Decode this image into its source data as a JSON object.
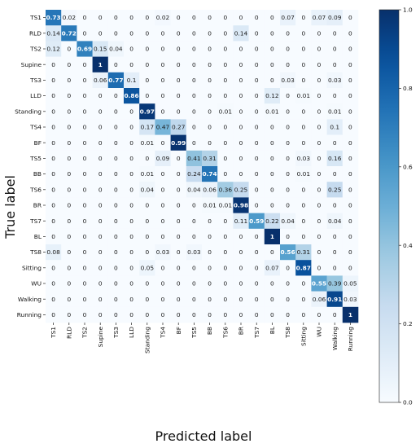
{
  "chart_data": {
    "type": "heatmap",
    "title": "",
    "xlabel": "Predicted label",
    "ylabel": "True label",
    "categories": [
      "TS1",
      "RLD",
      "TS2",
      "Supine",
      "TS3",
      "LLD",
      "Standing",
      "TS4",
      "BF",
      "TS5",
      "BB",
      "TS6",
      "BR",
      "TS7",
      "BL",
      "TS8",
      "Sitting",
      "WU",
      "Walking",
      "Running"
    ],
    "matrix": [
      [
        "0.73",
        "0.02",
        "0",
        "0",
        "0",
        "0",
        "0",
        "0.02",
        "0",
        "0",
        "0",
        "0",
        "0",
        "0",
        "0",
        "0.07",
        "0",
        "0.07",
        "0.09",
        "0"
      ],
      [
        "0.14",
        "0.72",
        "0",
        "0",
        "0",
        "0",
        "0",
        "0",
        "0",
        "0",
        "0",
        "0",
        "0.14",
        "0",
        "0",
        "0",
        "0",
        "0",
        "0",
        "0"
      ],
      [
        "0.12",
        "0",
        "0.69",
        "0.15",
        "0.04",
        "0",
        "0",
        "0",
        "0",
        "0",
        "0",
        "0",
        "0",
        "0",
        "0",
        "0",
        "0",
        "0",
        "0",
        "0"
      ],
      [
        "0",
        "0",
        "0",
        "1",
        "0",
        "0",
        "0",
        "0",
        "0",
        "0",
        "0",
        "0",
        "0",
        "0",
        "0",
        "0",
        "0",
        "0",
        "0",
        "0"
      ],
      [
        "0",
        "0",
        "0",
        "0.06",
        "0.77",
        "0.1",
        "0",
        "0",
        "0",
        "0",
        "0",
        "0",
        "0",
        "0",
        "0",
        "0.03",
        "0",
        "0",
        "0.03",
        "0"
      ],
      [
        "0",
        "0",
        "0",
        "0",
        "0",
        "0.86",
        "0",
        "0",
        "0",
        "0",
        "0",
        "0",
        "0",
        "0",
        "0.12",
        "0",
        "0.01",
        "0",
        "0",
        "0"
      ],
      [
        "0",
        "0",
        "0",
        "0",
        "0",
        "0",
        "0.97",
        "0",
        "0",
        "0",
        "0",
        "0.01",
        "0",
        "0",
        "0.01",
        "0",
        "0",
        "0",
        "0.01",
        "0"
      ],
      [
        "0",
        "0",
        "0",
        "0",
        "0",
        "0",
        "0.17",
        "0.47",
        "0.27",
        "0",
        "0",
        "0",
        "0",
        "0",
        "0",
        "0",
        "0",
        "0",
        "0.1",
        "0"
      ],
      [
        "0",
        "0",
        "0",
        "0",
        "0",
        "0",
        "0.01",
        "0",
        "0.99",
        "0",
        "0",
        "0",
        "0",
        "0",
        "0",
        "0",
        "0",
        "0",
        "0",
        "0"
      ],
      [
        "0",
        "0",
        "0",
        "0",
        "0",
        "0",
        "0",
        "0.09",
        "0",
        "0.41",
        "0.31",
        "0",
        "0",
        "0",
        "0",
        "0",
        "0.03",
        "0",
        "0.16",
        "0"
      ],
      [
        "0",
        "0",
        "0",
        "0",
        "0",
        "0",
        "0.01",
        "0",
        "0",
        "0.24",
        "0.74",
        "0",
        "0",
        "0",
        "0",
        "0",
        "0.01",
        "0",
        "0",
        "0"
      ],
      [
        "0",
        "0",
        "0",
        "0",
        "0",
        "0",
        "0.04",
        "0",
        "0",
        "0.04",
        "0.06",
        "0.36",
        "0.25",
        "0",
        "0",
        "0",
        "0",
        "0",
        "0.25",
        "0"
      ],
      [
        "0",
        "0",
        "0",
        "0",
        "0",
        "0",
        "0",
        "0",
        "0",
        "0",
        "0.01",
        "0.01",
        "0.98",
        "0",
        "0",
        "0",
        "0",
        "0",
        "0",
        "0"
      ],
      [
        "0",
        "0",
        "0",
        "0",
        "0",
        "0",
        "0",
        "0",
        "0",
        "0",
        "0",
        "0",
        "0.11",
        "0.59",
        "0.22",
        "0.04",
        "0",
        "0",
        "0.04",
        "0"
      ],
      [
        "0",
        "0",
        "0",
        "0",
        "0",
        "0",
        "0",
        "0",
        "0",
        "0",
        "0",
        "0",
        "0",
        "0",
        "1",
        "0",
        "0",
        "0",
        "0",
        "0"
      ],
      [
        "0.08",
        "0",
        "0",
        "0",
        "0",
        "0",
        "0",
        "0.03",
        "0",
        "0.03",
        "0",
        "0",
        "0",
        "0",
        "0",
        "0.56",
        "0.31",
        "0",
        "0",
        "0"
      ],
      [
        "0",
        "0",
        "0",
        "0",
        "0",
        "0",
        "0.05",
        "0",
        "0",
        "0",
        "0",
        "0",
        "0",
        "0",
        "0.07",
        "0",
        "0.87",
        "0",
        "0",
        "0"
      ],
      [
        "0",
        "0",
        "0",
        "0",
        "0",
        "0",
        "0",
        "0",
        "0",
        "0",
        "0",
        "0",
        "0",
        "0",
        "0",
        "0",
        "0",
        "0.55",
        "0.39",
        "0.05"
      ],
      [
        "0",
        "0",
        "0",
        "0",
        "0",
        "0",
        "0",
        "0",
        "0",
        "0",
        "0",
        "0",
        "0",
        "0",
        "0",
        "0",
        "0",
        "0.06",
        "0.91",
        "0.03"
      ],
      [
        "0",
        "0",
        "0",
        "0",
        "0",
        "0",
        "0",
        "0",
        "0",
        "0",
        "0",
        "0",
        "0",
        "0",
        "0",
        "0",
        "0",
        "0",
        "0",
        "1"
      ]
    ],
    "colorbar": {
      "range": [
        0,
        1
      ],
      "ticks": [
        "0.0",
        "0.2",
        "0.4",
        "0.6",
        "0.8",
        "1.0"
      ],
      "colormap": "Blues",
      "low_color": "#f7fbff",
      "high_color": "#08306b"
    },
    "grid": false
  }
}
